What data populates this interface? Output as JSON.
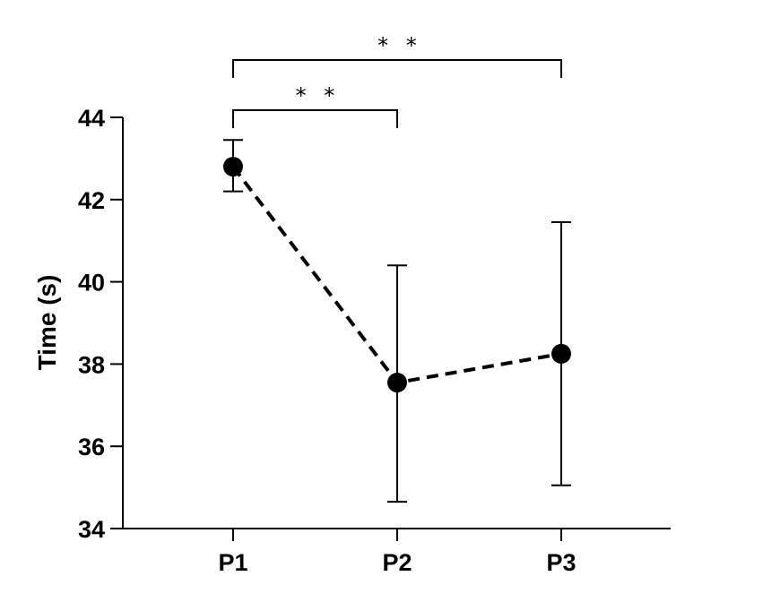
{
  "chart_data": {
    "type": "line",
    "categories": [
      "P1",
      "P2",
      "P3"
    ],
    "series": [
      {
        "values": [
          42.8,
          37.55,
          38.25
        ],
        "error_low": [
          42.2,
          34.65,
          35.05
        ],
        "error_high": [
          43.45,
          40.4,
          41.45
        ],
        "line_style": "dashed",
        "marker": "filled-circle",
        "color": "#000000"
      }
    ],
    "ylabel": "Time (s)",
    "xlabel": "",
    "ylim": [
      34,
      44
    ],
    "yticks": [
      34,
      36,
      38,
      40,
      42,
      44
    ],
    "grid": false,
    "significance": [
      {
        "from": "P1",
        "to": "P3",
        "label": "* *"
      },
      {
        "from": "P1",
        "to": "P2",
        "label": "* *"
      }
    ]
  }
}
